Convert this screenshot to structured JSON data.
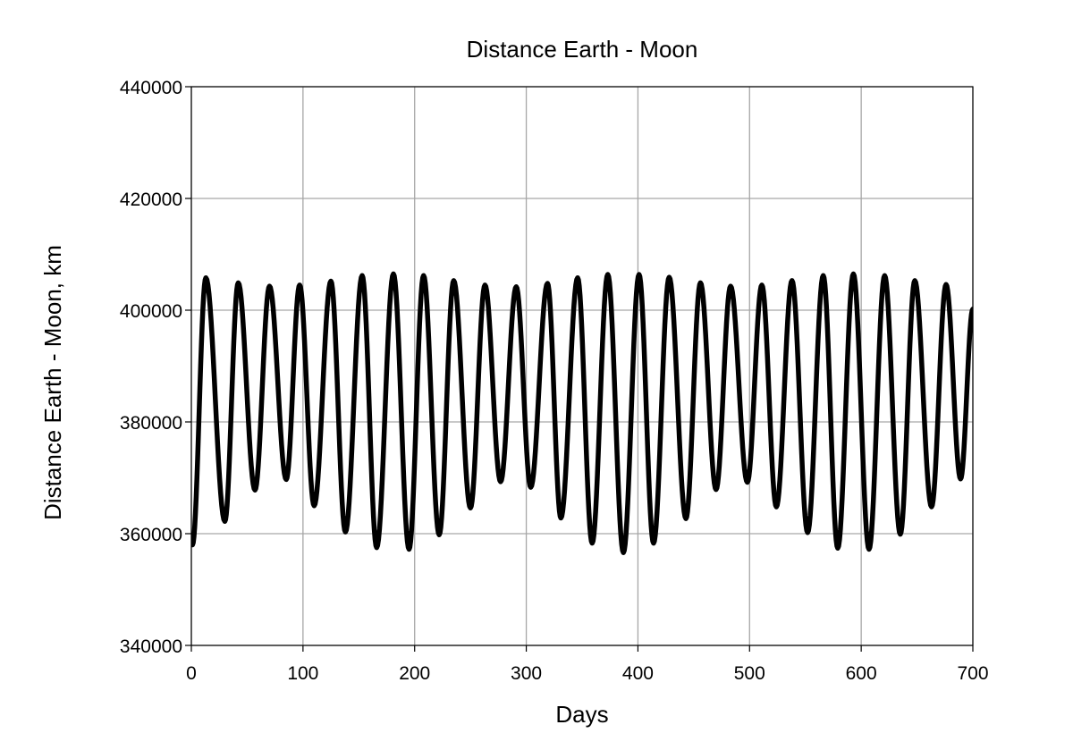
{
  "chart_data": {
    "type": "line",
    "title": "Distance Earth - Moon",
    "xlabel": "Days",
    "ylabel": "Distance Earth - Moon, km",
    "xlim": [
      0,
      700
    ],
    "ylim": [
      340000,
      440000
    ],
    "x_ticks": [
      0,
      100,
      200,
      300,
      400,
      500,
      600,
      700
    ],
    "y_ticks": [
      340000,
      360000,
      380000,
      400000,
      420000,
      440000
    ],
    "x_tick_labels": [
      "0",
      "100",
      "200",
      "300",
      "400",
      "500",
      "600",
      "700"
    ],
    "y_tick_labels": [
      "340000",
      "360000",
      "380000",
      "400000",
      "420000",
      "440000"
    ],
    "grid": true,
    "legend": "none",
    "line_color": "#000000",
    "grid_color": "#a6a6a6",
    "series": [
      {
        "extrema": [
          [
            1,
            358000
          ],
          [
            13,
            405800
          ],
          [
            30,
            362200
          ],
          [
            42,
            404900
          ],
          [
            57,
            367800
          ],
          [
            70,
            404300
          ],
          [
            85,
            369700
          ],
          [
            97,
            404500
          ],
          [
            110,
            365000
          ],
          [
            125,
            405200
          ],
          [
            138,
            360300
          ],
          [
            153,
            406200
          ],
          [
            166,
            357500
          ],
          [
            181,
            406500
          ],
          [
            195,
            357200
          ],
          [
            208,
            406200
          ],
          [
            222,
            359800
          ],
          [
            235,
            405300
          ],
          [
            250,
            364600
          ],
          [
            263,
            404500
          ],
          [
            277,
            369300
          ],
          [
            291,
            404200
          ],
          [
            304,
            368300
          ],
          [
            319,
            404800
          ],
          [
            331,
            362800
          ],
          [
            346,
            405800
          ],
          [
            359,
            358300
          ],
          [
            373,
            406400
          ],
          [
            387,
            356600
          ],
          [
            401,
            406400
          ],
          [
            414,
            358300
          ],
          [
            428,
            405900
          ],
          [
            443,
            362700
          ],
          [
            456,
            404900
          ],
          [
            470,
            367900
          ],
          [
            483,
            404300
          ],
          [
            498,
            369200
          ],
          [
            511,
            404500
          ],
          [
            524,
            364800
          ],
          [
            538,
            405300
          ],
          [
            552,
            360200
          ],
          [
            566,
            406200
          ],
          [
            579,
            357400
          ],
          [
            593,
            406500
          ],
          [
            607,
            357200
          ],
          [
            621,
            406200
          ],
          [
            635,
            359900
          ],
          [
            648,
            405300
          ],
          [
            663,
            364800
          ],
          [
            676,
            404600
          ],
          [
            689,
            369800
          ],
          [
            700,
            400200
          ]
        ]
      }
    ]
  }
}
